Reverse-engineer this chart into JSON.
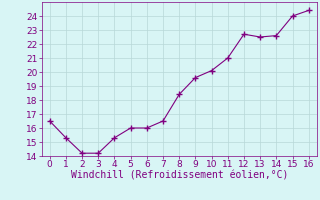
{
  "x": [
    0,
    1,
    2,
    3,
    4,
    5,
    6,
    7,
    8,
    9,
    10,
    11,
    12,
    13,
    14,
    15,
    16
  ],
  "y": [
    16.5,
    15.3,
    14.2,
    14.2,
    15.3,
    16.0,
    16.0,
    16.5,
    18.4,
    19.6,
    20.1,
    21.0,
    22.7,
    22.5,
    22.6,
    24.0,
    24.4
  ],
  "line_color": "#800080",
  "marker": "+",
  "marker_size": 5,
  "linewidth": 0.8,
  "bg_color": "#d8f5f5",
  "grid_color": "#b8d8d8",
  "xlabel": "Windchill (Refroidissement éolien,°C)",
  "xlabel_color": "#800080",
  "xlabel_fontsize": 7,
  "tick_color": "#800080",
  "tick_fontsize": 6.5,
  "ylim": [
    14,
    25
  ],
  "xlim": [
    -0.5,
    16.5
  ],
  "yticks": [
    14,
    15,
    16,
    17,
    18,
    19,
    20,
    21,
    22,
    23,
    24
  ],
  "xticks": [
    0,
    1,
    2,
    3,
    4,
    5,
    6,
    7,
    8,
    9,
    10,
    11,
    12,
    13,
    14,
    15,
    16
  ]
}
